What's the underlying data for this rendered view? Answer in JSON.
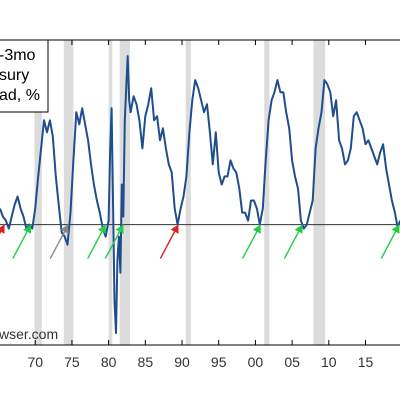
{
  "chart_data": {
    "type": "line",
    "title_lines": [
      "-3mo",
      "sury",
      "ad, %"
    ],
    "source_text": "wser.com",
    "x_tick_labels": [
      "70",
      "75",
      "80",
      "85",
      "90",
      "95",
      "00",
      "05",
      "10",
      "15"
    ],
    "x_tick_years": [
      1970,
      1975,
      1980,
      1985,
      1990,
      1995,
      2000,
      2005,
      2010,
      2015
    ],
    "xlim": [
      1965.2,
      2019.7
    ],
    "ylim": [
      -3.0,
      4.6
    ],
    "zero_line": 0,
    "recessions": [
      [
        1969.9,
        1970.9
      ],
      [
        1973.9,
        1975.2
      ],
      [
        1980.0,
        1980.5
      ],
      [
        1981.5,
        1982.9
      ],
      [
        1990.5,
        1991.2
      ],
      [
        2001.2,
        2001.9
      ],
      [
        2007.9,
        2009.5
      ]
    ],
    "series": [
      {
        "color": "#1f4e8c",
        "x": [
          1965.2,
          1965.6,
          1966.0,
          1966.4,
          1966.8,
          1967.2,
          1967.6,
          1968.0,
          1968.4,
          1968.8,
          1969.2,
          1969.6,
          1970.0,
          1970.4,
          1970.8,
          1971.2,
          1971.6,
          1972.0,
          1972.4,
          1972.8,
          1973.2,
          1973.6,
          1974.0,
          1974.4,
          1974.8,
          1975.2,
          1975.6,
          1976.0,
          1976.4,
          1976.8,
          1977.2,
          1977.6,
          1978.0,
          1978.4,
          1978.8,
          1979.2,
          1979.6,
          1980.0,
          1980.2,
          1980.4,
          1980.6,
          1980.8,
          1981.0,
          1981.2,
          1981.4,
          1981.6,
          1981.8,
          1982.0,
          1982.2,
          1982.4,
          1982.6,
          1982.8,
          1983.0,
          1983.4,
          1983.8,
          1984.2,
          1984.6,
          1985.0,
          1985.4,
          1985.8,
          1986.2,
          1986.6,
          1987.0,
          1987.4,
          1987.8,
          1988.2,
          1988.6,
          1989.0,
          1989.4,
          1989.8,
          1990.2,
          1990.6,
          1991.0,
          1991.4,
          1991.8,
          1992.2,
          1992.6,
          1993.0,
          1993.4,
          1993.8,
          1994.2,
          1994.6,
          1995.0,
          1995.4,
          1995.8,
          1996.2,
          1996.6,
          1997.0,
          1997.4,
          1997.8,
          1998.2,
          1998.6,
          1999.0,
          1999.4,
          1999.8,
          2000.2,
          2000.6,
          2001.0,
          2001.4,
          2001.8,
          2002.2,
          2002.6,
          2003.0,
          2003.4,
          2003.8,
          2004.2,
          2004.6,
          2005.0,
          2005.4,
          2005.8,
          2006.2,
          2006.6,
          2007.0,
          2007.4,
          2007.8,
          2008.2,
          2008.6,
          2009.0,
          2009.4,
          2009.8,
          2010.2,
          2010.6,
          2011.0,
          2011.4,
          2011.8,
          2012.2,
          2012.6,
          2013.0,
          2013.4,
          2013.8,
          2014.2,
          2014.6,
          2015.0,
          2015.4,
          2015.8,
          2016.2,
          2016.6,
          2017.0,
          2017.4,
          2017.8,
          2018.2,
          2018.6,
          2019.0,
          2019.4,
          2019.7
        ],
        "values": [
          0.4,
          0.2,
          0.1,
          -0.1,
          0.2,
          0.5,
          0.7,
          0.4,
          0.2,
          -0.1,
          0.0,
          -0.1,
          0.4,
          1.2,
          1.9,
          2.6,
          2.3,
          2.6,
          2.2,
          1.2,
          0.5,
          -0.2,
          -0.3,
          -0.5,
          0.3,
          1.6,
          2.8,
          2.5,
          2.9,
          2.5,
          2.1,
          1.5,
          1.0,
          0.6,
          0.3,
          -0.1,
          -0.3,
          0.1,
          1.8,
          2.9,
          0.6,
          -1.9,
          -2.7,
          -0.9,
          -0.3,
          -1.2,
          1.0,
          0.2,
          2.6,
          3.4,
          4.2,
          3.1,
          2.8,
          3.2,
          3.0,
          2.6,
          1.9,
          2.7,
          3.0,
          3.4,
          2.6,
          2.7,
          2.1,
          2.4,
          1.9,
          1.5,
          1.3,
          0.4,
          0.0,
          0.4,
          0.7,
          1.2,
          2.3,
          3.1,
          3.6,
          3.4,
          3.1,
          2.8,
          3.0,
          2.3,
          1.5,
          2.3,
          1.3,
          1.0,
          1.2,
          1.2,
          1.6,
          1.4,
          1.3,
          0.9,
          0.3,
          0.3,
          0.1,
          0.6,
          0.6,
          0.4,
          0.0,
          0.4,
          1.6,
          2.6,
          3.1,
          3.3,
          3.6,
          3.3,
          3.3,
          2.8,
          2.4,
          1.6,
          1.2,
          0.9,
          0.1,
          -0.1,
          0.0,
          0.3,
          0.6,
          1.9,
          2.4,
          2.8,
          3.6,
          3.5,
          3.3,
          2.7,
          3.1,
          2.1,
          1.9,
          1.5,
          1.6,
          1.9,
          2.7,
          2.8,
          2.6,
          2.4,
          2.0,
          2.1,
          1.9,
          1.7,
          1.5,
          1.8,
          2.0,
          1.4,
          1.0,
          0.6,
          0.3,
          -0.1,
          0.1
        ]
      }
    ],
    "arrows": [
      {
        "color": "#e02020",
        "x": 1965.8,
        "y": 0.0
      },
      {
        "color": "#22cc44",
        "x": 1969.4,
        "y": 0.0
      },
      {
        "color": "#888888",
        "x": 1974.5,
        "y": 0.0
      },
      {
        "color": "#22cc44",
        "x": 1979.6,
        "y": 0.0
      },
      {
        "color": "#22cc44",
        "x": 1982.0,
        "y": 0.0
      },
      {
        "color": "#e02020",
        "x": 1989.5,
        "y": 0.0
      },
      {
        "color": "#22cc44",
        "x": 2000.7,
        "y": 0.0
      },
      {
        "color": "#22cc44",
        "x": 2006.4,
        "y": 0.0
      },
      {
        "color": "#22cc44",
        "x": 2019.6,
        "y": 0.0
      }
    ],
    "grid": false
  }
}
